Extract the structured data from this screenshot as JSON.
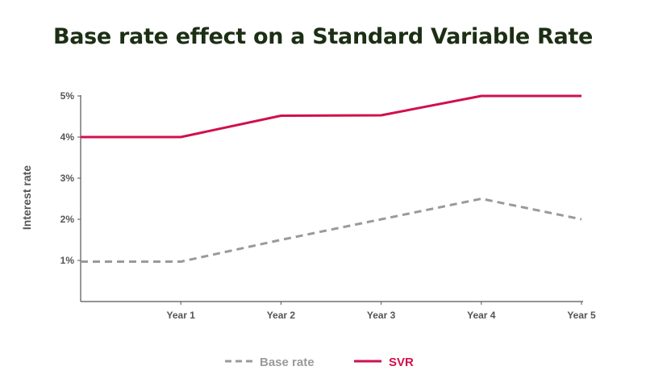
{
  "chart_data": {
    "type": "line",
    "title": "Base rate effect on a Standard Variable Rate",
    "xlabel": "",
    "ylabel": "Interest rate",
    "x_tick_labels": [
      "Year 1",
      "Year 2",
      "Year 3",
      "Year 4",
      "Year 5"
    ],
    "y_tick_labels": [
      "1%",
      "2%",
      "3%",
      "4%",
      "5%"
    ],
    "xlim": [
      0,
      5
    ],
    "ylim": [
      0,
      5
    ],
    "grid": false,
    "legend_position": "bottom",
    "series": [
      {
        "name": "Base rate",
        "color": "#9a9a9a",
        "style": "dashed",
        "x": [
          0,
          1,
          2,
          3,
          4,
          5
        ],
        "y": [
          0.97,
          0.97,
          1.5,
          2.0,
          2.5,
          2.0
        ]
      },
      {
        "name": "SVR",
        "color": "#d0104c",
        "style": "solid",
        "x": [
          0,
          1,
          2,
          3,
          4,
          5
        ],
        "y": [
          4.0,
          4.0,
          4.52,
          4.53,
          5.0,
          5.0
        ]
      }
    ]
  },
  "colors": {
    "title": "#1c2e14",
    "axis": "#555555"
  }
}
